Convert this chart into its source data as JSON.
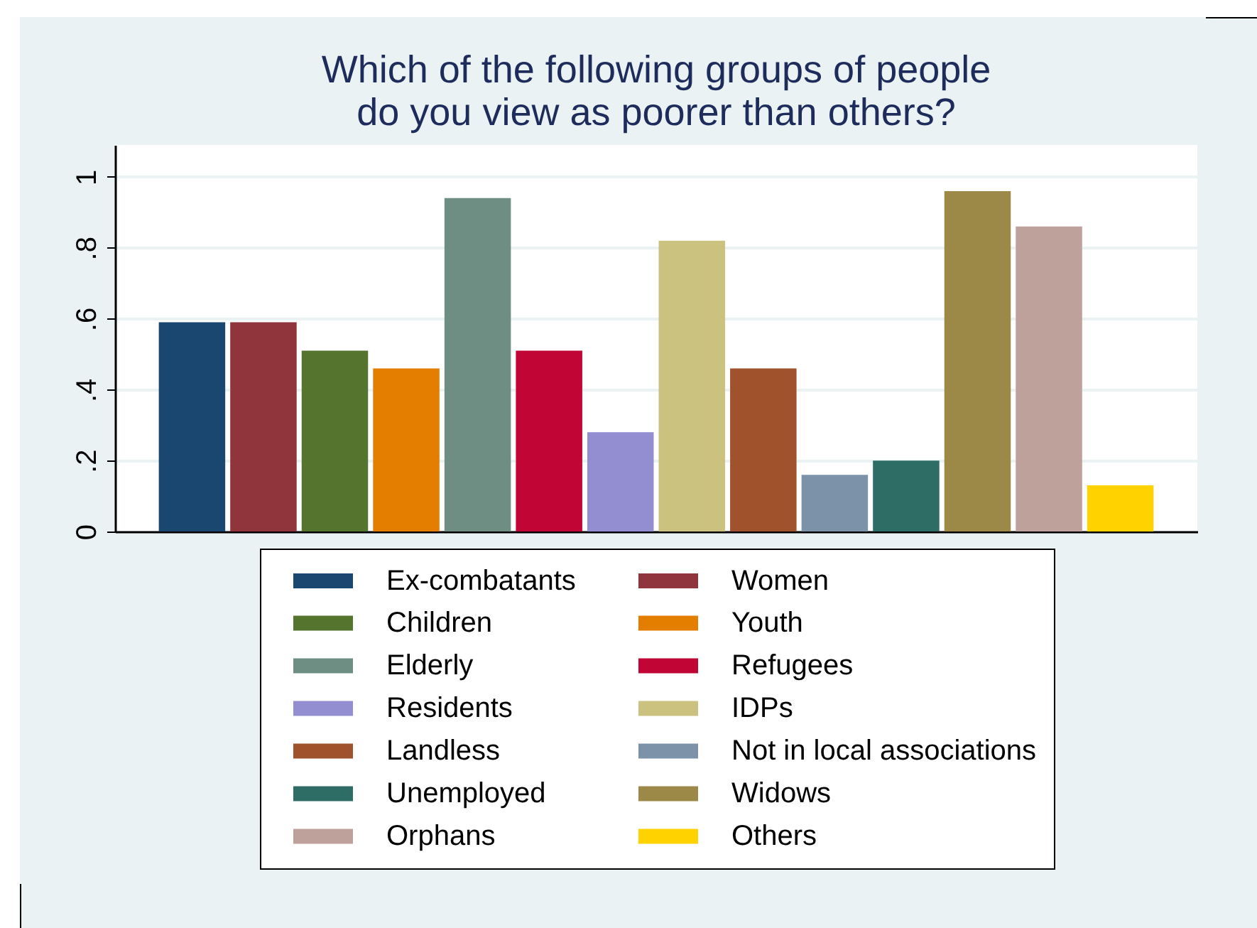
{
  "chart_data": {
    "type": "bar",
    "title": "Which of the following groups of people\ndo you view as poorer than others?",
    "categories": [
      null
    ],
    "series": [
      {
        "name": "Ex-combatants",
        "color": "#1a476f",
        "values": [
          0.59
        ]
      },
      {
        "name": "Women",
        "color": "#90353b",
        "values": [
          0.59
        ]
      },
      {
        "name": "Children",
        "color": "#55752f",
        "values": [
          0.51
        ]
      },
      {
        "name": "Youth",
        "color": "#e37e00",
        "values": [
          0.46
        ]
      },
      {
        "name": "Elderly",
        "color": "#6e8e84",
        "values": [
          0.94
        ]
      },
      {
        "name": "Refugees",
        "color": "#c10534",
        "values": [
          0.51
        ]
      },
      {
        "name": "Residents",
        "color": "#938dd2",
        "values": [
          0.28
        ]
      },
      {
        "name": "IDPs",
        "color": "#cac27e",
        "values": [
          0.82
        ]
      },
      {
        "name": "Landless",
        "color": "#a0522d",
        "values": [
          0.46
        ]
      },
      {
        "name": "Not in local associations",
        "color": "#7b92a8",
        "values": [
          0.16
        ]
      },
      {
        "name": "Unemployed",
        "color": "#2d6d66",
        "values": [
          0.2
        ]
      },
      {
        "name": "Widows",
        "color": "#9c8847",
        "values": [
          0.96
        ]
      },
      {
        "name": "Orphans",
        "color": "#bfa19c",
        "values": [
          0.86
        ]
      },
      {
        "name": "Others",
        "color": "#ffd200",
        "values": [
          0.13
        ]
      }
    ],
    "ylim": [
      0,
      1.09
    ],
    "yticks": [
      0,
      {
        "value": 0.2,
        "label": ".2"
      },
      {
        "value": 0.4,
        "label": ".4"
      },
      {
        "value": 0.6,
        "label": ".6"
      },
      {
        "value": 0.8,
        "label": ".8"
      },
      1
    ],
    "grid": "y",
    "legend": "bottom",
    "tick_labels": "y"
  }
}
